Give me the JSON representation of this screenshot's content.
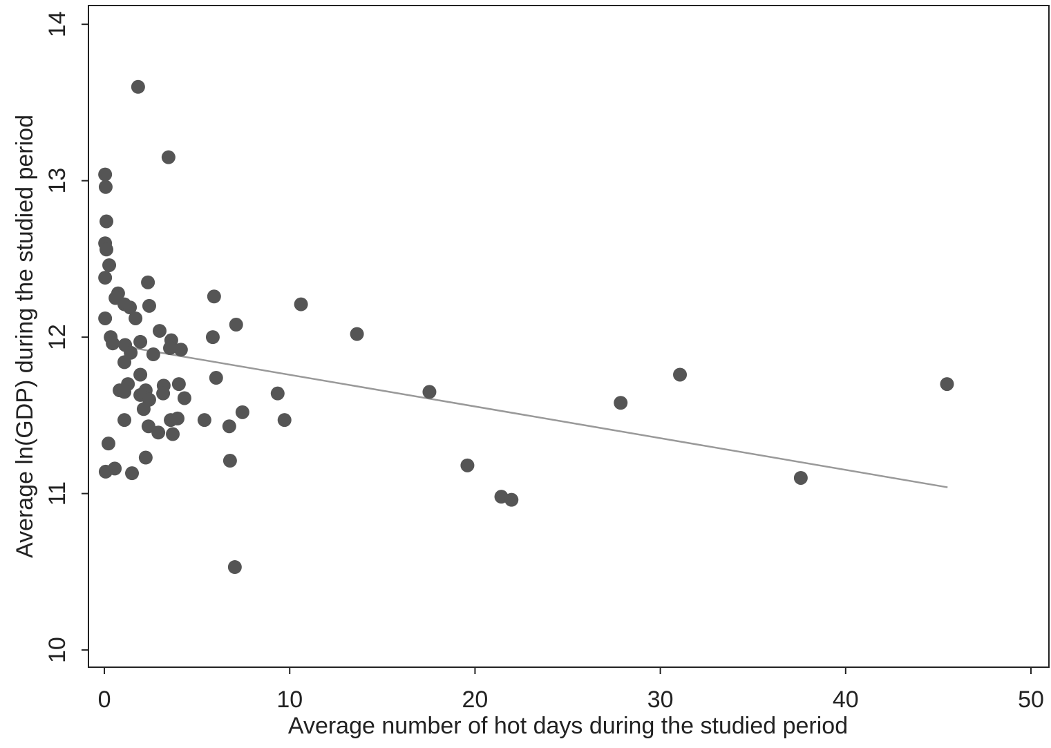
{
  "chart_data": {
    "type": "scatter",
    "xlabel": "Average number of hot days during the studied period",
    "ylabel": "Average ln(GDP) during the studied period",
    "xlim": [
      -0.86,
      50.97
    ],
    "ylim": [
      9.89,
      14.12
    ],
    "xticks": [
      0,
      10,
      20,
      30,
      40,
      50
    ],
    "yticks": [
      10,
      11,
      12,
      13,
      14
    ],
    "grid": false,
    "series": [
      {
        "color": "#555555",
        "x": [
          1.82,
          3.46,
          0.04,
          0.07,
          0.11,
          0.04,
          0.11,
          0.26,
          0.04,
          2.35,
          0.74,
          0.6,
          5.92,
          2.42,
          10.61,
          1.08,
          1.38,
          0.04,
          1.68,
          7.11,
          13.63,
          2.98,
          0.34,
          5.85,
          3.61,
          1.94,
          0.45,
          1.12,
          4.13,
          3.54,
          1.42,
          2.64,
          1.08,
          31.06,
          1.94,
          6.03,
          45.47,
          4.02,
          1.27,
          3.2,
          0.82,
          1.08,
          17.54,
          2.23,
          9.35,
          1.94,
          3.17,
          2.42,
          4.32,
          27.86,
          2.12,
          7.45,
          1.08,
          3.58,
          3.95,
          5.4,
          9.72,
          2.38,
          6.74,
          2.91,
          3.69,
          0.22,
          2.23,
          6.78,
          19.59,
          0.56,
          0.07,
          1.49,
          37.58,
          21.42,
          21.97,
          7.04
        ],
        "y": [
          13.6,
          13.15,
          13.04,
          12.96,
          12.74,
          12.6,
          12.56,
          12.46,
          12.38,
          12.35,
          12.28,
          12.25,
          12.26,
          12.2,
          12.21,
          12.21,
          12.19,
          12.12,
          12.12,
          12.08,
          12.02,
          12.04,
          12.0,
          12.0,
          11.98,
          11.97,
          11.96,
          11.95,
          11.92,
          11.93,
          11.9,
          11.89,
          11.84,
          11.76,
          11.76,
          11.74,
          11.7,
          11.7,
          11.7,
          11.69,
          11.66,
          11.65,
          11.65,
          11.66,
          11.64,
          11.63,
          11.64,
          11.6,
          11.61,
          11.58,
          11.54,
          11.52,
          11.47,
          11.47,
          11.48,
          11.47,
          11.47,
          11.43,
          11.43,
          11.39,
          11.38,
          11.32,
          11.23,
          11.21,
          11.18,
          11.16,
          11.14,
          11.13,
          11.1,
          10.98,
          10.96,
          10.53
        ]
      }
    ],
    "fit": {
      "color": "#999999",
      "x": [
        0.1,
        45.5
      ],
      "y": [
        11.96,
        11.04
      ]
    }
  }
}
